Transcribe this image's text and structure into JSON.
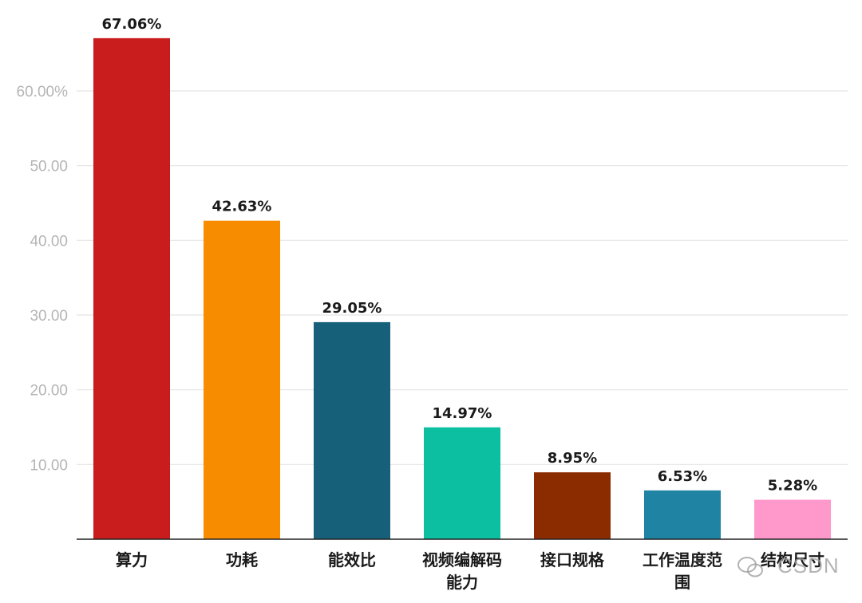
{
  "chart_data": {
    "type": "bar",
    "categories": [
      "算力",
      "功耗",
      "能效比",
      "视频编解码\n能力",
      "接口规格",
      "工作温度范\n围",
      "结构尺寸"
    ],
    "values": [
      67.06,
      42.63,
      29.05,
      14.97,
      8.95,
      6.53,
      5.28
    ],
    "value_labels": [
      "67.06%",
      "42.63%",
      "29.05%",
      "14.97%",
      "8.95%",
      "6.53%",
      "5.28%"
    ],
    "colors": [
      "#c91d1d",
      "#f78c00",
      "#17607a",
      "#0cbfa1",
      "#8a2b00",
      "#1f84a3",
      "#ff99cc"
    ],
    "yticks": [
      {
        "value": 10,
        "label": "10.00"
      },
      {
        "value": 20,
        "label": "20.00"
      },
      {
        "value": 30,
        "label": "30.00"
      },
      {
        "value": 40,
        "label": "40.00"
      },
      {
        "value": 50,
        "label": "50.00"
      },
      {
        "value": 60,
        "label": "60.00%"
      }
    ],
    "ylim": [
      0,
      70
    ],
    "grid": true,
    "title": "",
    "xlabel": "",
    "ylabel": ""
  },
  "watermark": {
    "text": "CSDN"
  }
}
